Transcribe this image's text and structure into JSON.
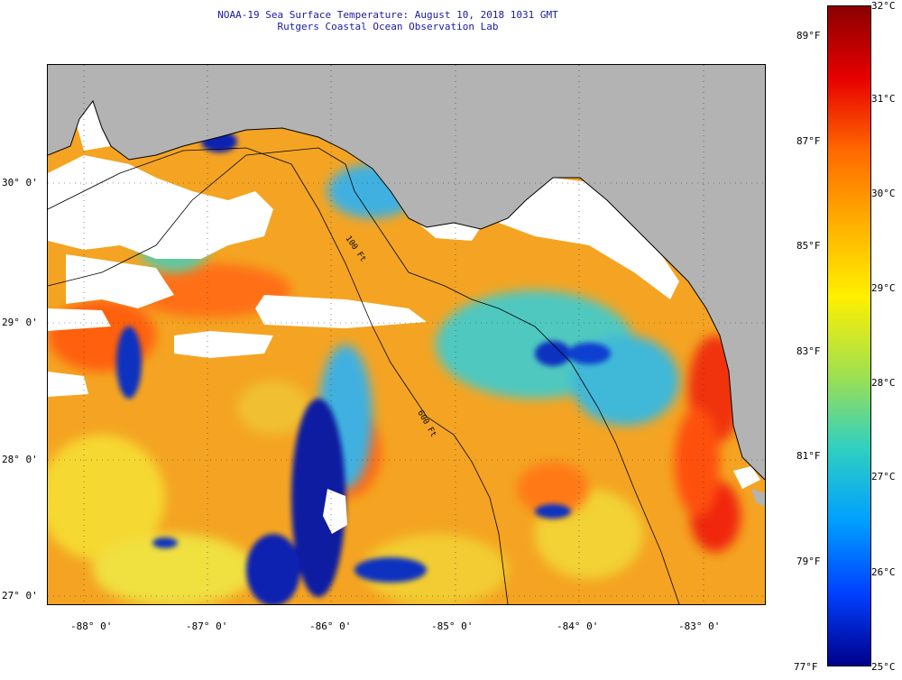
{
  "title": {
    "line1": "NOAA-19 Sea Surface Temperature:  August 10, 2018 1031 GMT",
    "line2": "Rutgers Coastal Ocean Observation Lab"
  },
  "axes": {
    "lat_labels": [
      "30° 0'",
      "29° 0'",
      "28° 0'",
      "27° 0'"
    ],
    "lon_labels": [
      "-88° 0'",
      "-87° 0'",
      "-86° 0'",
      "-85° 0'",
      "-84° 0'",
      "-83° 0'"
    ]
  },
  "contours": {
    "label_100ft": "100 Ft",
    "label_600ft": "600 Ft"
  },
  "colorbar": {
    "celsius": [
      "32°C",
      "31°C",
      "30°C",
      "29°C",
      "28°C",
      "27°C",
      "26°C",
      "25°C"
    ],
    "fahrenheit": [
      "89°F",
      "87°F",
      "85°F",
      "83°F",
      "81°F",
      "79°F",
      "77°F"
    ],
    "colors": [
      "#8b0000",
      "#e80000",
      "#ff6a00",
      "#ffb000",
      "#fff000",
      "#9fe050",
      "#30d0c0",
      "#00a0ff",
      "#0040ff",
      "#00008b"
    ]
  },
  "map_colors": {
    "land": "#b3b3b3",
    "cloud": "#ffffff",
    "warm": "#f0a020",
    "hot": "#ff5a10",
    "cool": "#40c0d0",
    "cold": "#0a1aa0"
  }
}
